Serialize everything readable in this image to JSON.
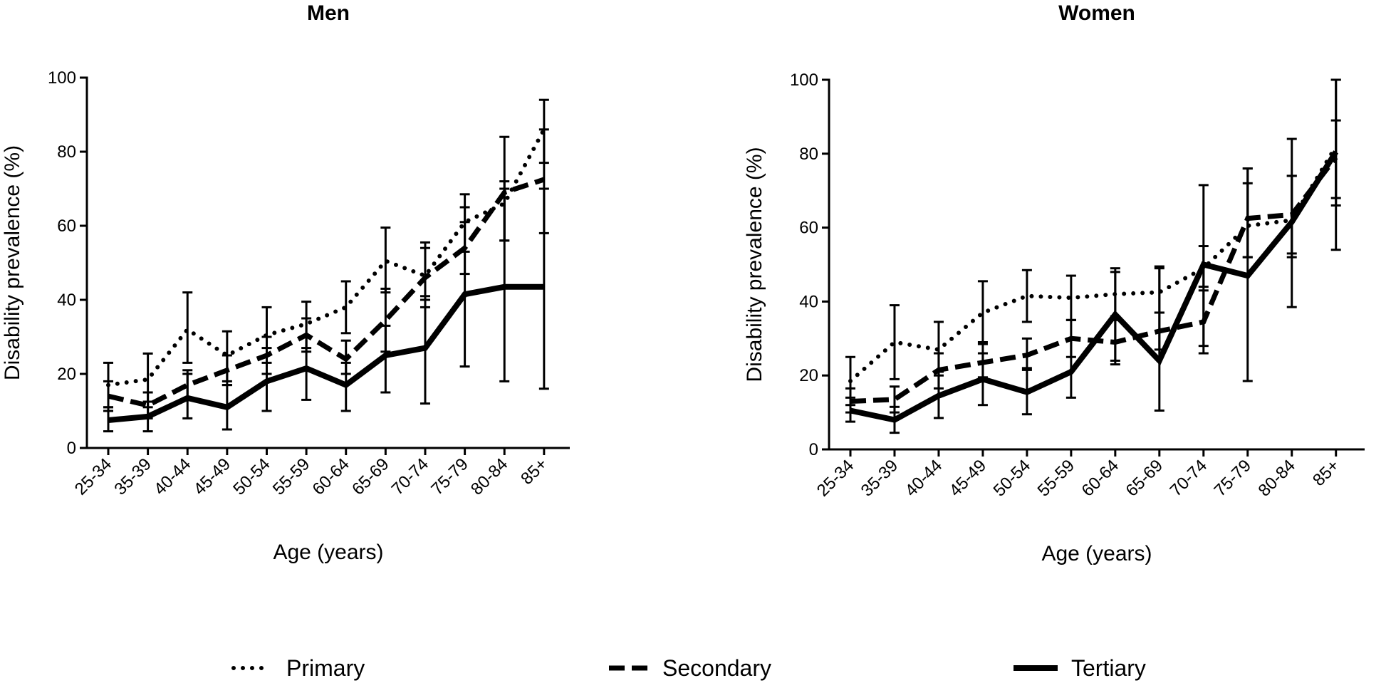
{
  "chart_data": [
    {
      "type": "line",
      "title": "Men",
      "xlabel": "Age (years)",
      "ylabel": "Disability prevalence (%)",
      "ylim": [
        0,
        100
      ],
      "yticks": [
        "0",
        "20",
        "40",
        "60",
        "80",
        "100"
      ],
      "categories": [
        "25-34",
        "35-39",
        "40-44",
        "45-49",
        "50-54",
        "55-59",
        "60-64",
        "65-69",
        "70-74",
        "75-79",
        "80-84",
        "85+"
      ],
      "series": [
        {
          "name": "Primary",
          "values": [
            17,
            18.5,
            32,
            25,
            30.5,
            33.5,
            38,
            50.5,
            46.5,
            61,
            66,
            86
          ],
          "lower": [
            11,
            11,
            23,
            18,
            23,
            27,
            31,
            42,
            38,
            53,
            56,
            77
          ],
          "upper": [
            23,
            25.5,
            42,
            31.5,
            38,
            39.5,
            45,
            59.5,
            55.5,
            68.5,
            72,
            94
          ]
        },
        {
          "name": "Secondary",
          "values": [
            14,
            11.5,
            17,
            21,
            25,
            30.5,
            24,
            34.5,
            46,
            54,
            69,
            72.5
          ],
          "lower": [
            10,
            8,
            13,
            17,
            20,
            26,
            20,
            26,
            40,
            47,
            56,
            58
          ],
          "upper": [
            18,
            15,
            21,
            25,
            30,
            35,
            29,
            43,
            54,
            65,
            84,
            86
          ]
        },
        {
          "name": "Tertiary",
          "values": [
            7.5,
            8.5,
            13.5,
            11,
            18,
            21.5,
            17,
            25,
            27,
            41.5,
            43.5,
            43.5
          ],
          "lower": [
            4.5,
            4.5,
            8,
            5,
            10,
            13,
            10,
            15,
            12,
            22,
            18,
            16
          ],
          "upper": [
            11,
            12.5,
            20,
            17,
            27,
            30,
            23,
            33,
            41,
            61,
            70,
            70
          ]
        }
      ]
    },
    {
      "type": "line",
      "title": "Women",
      "xlabel": "Age (years)",
      "ylabel": "Disability prevalence (%)",
      "ylim": [
        0,
        100
      ],
      "yticks": [
        "0",
        "20",
        "40",
        "60",
        "80",
        "100"
      ],
      "categories": [
        "25-34",
        "35-39",
        "40-44",
        "45-49",
        "50-54",
        "55-59",
        "60-64",
        "65-69",
        "70-74",
        "75-79",
        "80-84",
        "85+"
      ],
      "series": [
        {
          "name": "Primary",
          "values": [
            18.5,
            29,
            27,
            37,
            41.5,
            41,
            42,
            42.5,
            49,
            60.5,
            62,
            82
          ],
          "lower": [
            12,
            19,
            20,
            29,
            34.5,
            35,
            36,
            37,
            44,
            52,
            53,
            66
          ],
          "upper": [
            25,
            39,
            34.5,
            45.5,
            48.5,
            47,
            48,
            49,
            55,
            72,
            74,
            100
          ]
        },
        {
          "name": "Secondary",
          "values": [
            13,
            13.5,
            21.5,
            23.5,
            25.5,
            30,
            29,
            32,
            34.5,
            62.5,
            63.5,
            79
          ],
          "lower": [
            10,
            10,
            16.5,
            19.5,
            21.5,
            25,
            24,
            27,
            26,
            52,
            52,
            68
          ],
          "upper": [
            16.5,
            17,
            26,
            28.5,
            30,
            35,
            35,
            37,
            43,
            76,
            74,
            89
          ]
        },
        {
          "name": "Tertiary",
          "values": [
            10.5,
            8,
            14.5,
            19,
            15.5,
            21,
            36.5,
            24,
            50,
            47,
            61.5,
            80.5
          ],
          "lower": [
            7.5,
            4.5,
            8.5,
            12,
            9.5,
            14,
            23,
            10.5,
            28,
            18.5,
            38.5,
            54
          ],
          "upper": [
            14,
            11.5,
            21,
            26,
            22,
            30,
            49,
            49.5,
            71.5,
            76,
            84,
            100
          ]
        }
      ]
    }
  ],
  "legend": {
    "items": [
      {
        "name": "Primary",
        "label": "Primary"
      },
      {
        "name": "Secondary",
        "label": "Secondary"
      },
      {
        "name": "Tertiary",
        "label": "Tertiary"
      }
    ]
  }
}
